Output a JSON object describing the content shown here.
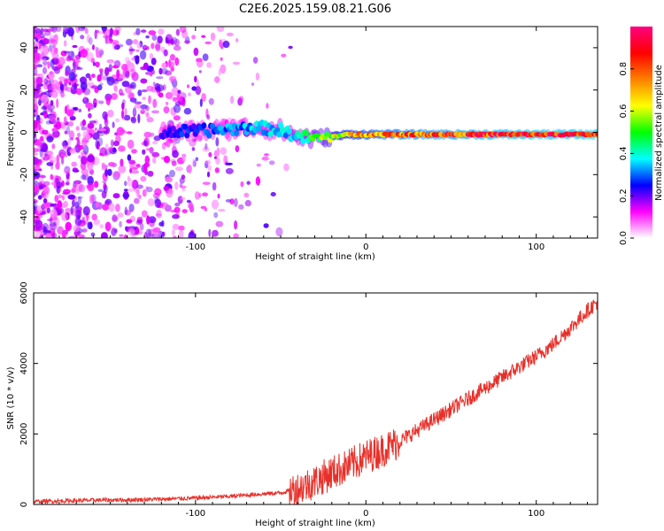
{
  "title": "C2E6.2025.159.08.21.G06",
  "chart_data": [
    {
      "type": "heatmap",
      "xlabel": "Height of straight line (km)",
      "ylabel": "Frequency (Hz)",
      "xlim": [
        -195,
        136
      ],
      "ylim": [
        -50,
        50
      ],
      "xticks": [
        -100,
        0,
        100
      ],
      "yticks": [
        -40,
        -20,
        0,
        20,
        40
      ],
      "colorbar": {
        "label": "Normalized spectral amplitude",
        "range": [
          0,
          1
        ],
        "ticks": [
          "0.0",
          "0.2",
          "0.4",
          "0.6",
          "0.8"
        ],
        "tick_values": [
          0.0,
          0.2,
          0.4,
          0.6,
          0.8
        ],
        "colormap": [
          "#ffffff",
          "#ff00ff",
          "#0000ff",
          "#00ffff",
          "#00ff00",
          "#ffff00",
          "#ff8000",
          "#ff0000",
          "#ff0080"
        ]
      },
      "signal_band": [
        {
          "x": -120,
          "f": 0.0,
          "amp": 0.25
        },
        {
          "x": -100,
          "f": 0.5,
          "amp": 0.3
        },
        {
          "x": -80,
          "f": 1.5,
          "amp": 0.35
        },
        {
          "x": -65,
          "f": 2.5,
          "amp": 0.38
        },
        {
          "x": -50,
          "f": 1.0,
          "amp": 0.4
        },
        {
          "x": -40,
          "f": -2.0,
          "amp": 0.45
        },
        {
          "x": -30,
          "f": -3.0,
          "amp": 0.55
        },
        {
          "x": -20,
          "f": -2.0,
          "amp": 0.65
        },
        {
          "x": -10,
          "f": -1.0,
          "amp": 0.75
        },
        {
          "x": 0,
          "f": -1.0,
          "amp": 0.82
        },
        {
          "x": 20,
          "f": -1.0,
          "amp": 0.88
        },
        {
          "x": 50,
          "f": -1.0,
          "amp": 0.93
        },
        {
          "x": 80,
          "f": -1.0,
          "amp": 0.97
        },
        {
          "x": 100,
          "f": -1.0,
          "amp": 0.98
        },
        {
          "x": 136,
          "f": -1.0,
          "amp": 1.0
        }
      ]
    },
    {
      "type": "line",
      "xlabel": "Height of straight line (km)",
      "ylabel": "SNR (10 * v/v)",
      "xlim": [
        -195,
        136
      ],
      "ylim": [
        0,
        6000
      ],
      "xticks": [
        -100,
        0,
        100
      ],
      "yticks": [
        0,
        2000,
        4000,
        6000
      ],
      "color": "#e8302a",
      "series": [
        {
          "x": [
            -195,
            -180,
            -160,
            -140,
            -120,
            -100,
            -80,
            -60,
            -50,
            -40,
            -30,
            -20,
            -10,
            0,
            10,
            20,
            30,
            40,
            50,
            60,
            70,
            80,
            90,
            100,
            110,
            120,
            130,
            136
          ],
          "values": [
            80,
            100,
            120,
            130,
            150,
            180,
            230,
            300,
            330,
            450,
            650,
            900,
            1100,
            1350,
            1550,
            1800,
            2100,
            2400,
            2700,
            3000,
            3300,
            3600,
            3900,
            4200,
            4550,
            5000,
            5500,
            5750
          ]
        }
      ]
    }
  ]
}
